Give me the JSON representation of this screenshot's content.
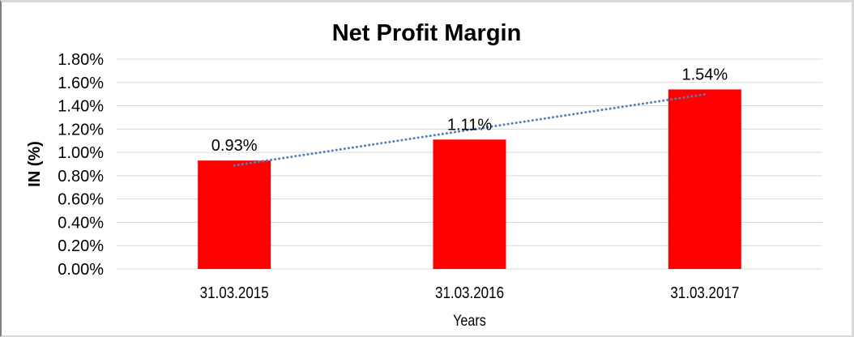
{
  "window": {
    "background_color": "#ffffff",
    "frame_border_color": "#d9d9d9"
  },
  "chart_data": {
    "type": "bar",
    "title": "Net Profit Margin",
    "xlabel": "Years",
    "ylabel": "IN (%)",
    "categories": [
      "31.03.2015",
      "31.03.2016",
      "31.03.2017"
    ],
    "values": [
      0.93,
      1.11,
      1.54
    ],
    "data_labels": [
      "0.93%",
      "1.11%",
      "1.54%"
    ],
    "ylim": [
      0,
      1.8
    ],
    "ytick_step": 0.2,
    "ytick_labels": [
      "0.00%",
      "0.20%",
      "0.40%",
      "0.60%",
      "0.80%",
      "1.00%",
      "1.20%",
      "1.40%",
      "1.60%",
      "1.80%"
    ],
    "grid": "horizontal",
    "legend": "none",
    "bar_color": "#ff0000",
    "gridline_color": "#d9d9d9",
    "trendline": {
      "style": "dotted",
      "color": "#4f81bd",
      "start_value": 0.888,
      "end_value": 1.498
    }
  }
}
